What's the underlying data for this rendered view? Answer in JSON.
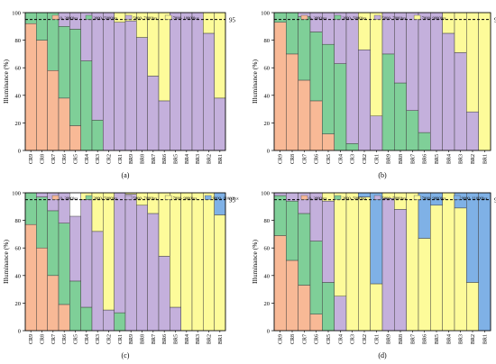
{
  "colors": {
    "c0_3000": "#f8b996",
    "c3000_5000": "#7fcf98",
    "c5000_7000": "#c4b0dc",
    "c7000_9000": "#fdfb9a",
    "c9000_11000": "#7fb1e6",
    "ref_line": "#000000"
  },
  "ylabel": "Illuminance (%)",
  "ref_label": "95",
  "y_ticks": [
    "0",
    "20",
    "40",
    "60",
    "80",
    "100"
  ],
  "chart_data": [
    {
      "type": "bar",
      "stacked": true,
      "panel_label": "(a)",
      "categories": [
        "CR9",
        "CR8",
        "CR7",
        "CR6",
        "CR5",
        "CR4",
        "CR3",
        "CR2",
        "CR1",
        "BR9",
        "BR8",
        "BR7",
        "BR6",
        "BR5",
        "BR4",
        "BR3",
        "BR2",
        "BR1"
      ],
      "legend": [
        "0- 3000lux",
        "3000- 5000lux",
        "5000- 7000lux",
        "7000- 10000lux"
      ],
      "ylim": [
        0,
        100
      ],
      "ref_y": 95,
      "series": [
        {
          "name": "0- 3000lux",
          "color_key": "c0_3000",
          "values": [
            92,
            80,
            58,
            38,
            18,
            0,
            0,
            0,
            0,
            0,
            0,
            0,
            0,
            0,
            0,
            0,
            0,
            0
          ]
        },
        {
          "name": "3000- 5000lux",
          "color_key": "c3000_5000",
          "values": [
            8,
            20,
            42,
            52,
            70,
            65,
            22,
            0,
            0,
            0,
            0,
            0,
            0,
            0,
            0,
            0,
            0,
            0
          ]
        },
        {
          "name": "5000- 7000lux",
          "color_key": "c5000_7000",
          "values": [
            0,
            0,
            0,
            10,
            12,
            35,
            78,
            100,
            93,
            94,
            82,
            54,
            36,
            100,
            100,
            100,
            85,
            38
          ]
        },
        {
          "name": "7000- 10000lux",
          "color_key": "c7000_9000",
          "values": [
            0,
            0,
            0,
            0,
            0,
            0,
            0,
            0,
            7,
            6,
            18,
            46,
            64,
            0,
            0,
            0,
            15,
            62
          ]
        }
      ]
    },
    {
      "type": "bar",
      "stacked": true,
      "panel_label": "(b)",
      "categories": [
        "CR9",
        "CR8",
        "CR7",
        "CR6",
        "CR5",
        "CR4",
        "CR3",
        "CR2",
        "CR1",
        "BR9",
        "BR8",
        "BR7",
        "BR6",
        "BR5",
        "BR4",
        "BR3",
        "BR2",
        "BR1"
      ],
      "legend": [
        "0- 3000lux",
        "3000- 5000lux",
        "5000- 7000lux",
        "7000- 9000lux"
      ],
      "ylim": [
        0,
        100
      ],
      "ref_y": 95,
      "series": [
        {
          "name": "0- 3000lux",
          "color_key": "c0_3000",
          "values": [
            93,
            70,
            51,
            36,
            12,
            0,
            0,
            0,
            0,
            0,
            0,
            0,
            0,
            0,
            0,
            0,
            0,
            0
          ]
        },
        {
          "name": "3000- 5000lux",
          "color_key": "c3000_5000",
          "values": [
            7,
            30,
            46,
            50,
            65,
            63,
            5,
            0,
            0,
            70,
            49,
            29,
            13,
            0,
            0,
            0,
            0,
            0
          ]
        },
        {
          "name": "5000- 7000lux",
          "color_key": "c5000_7000",
          "values": [
            0,
            0,
            3,
            14,
            23,
            37,
            95,
            73,
            25,
            30,
            51,
            71,
            87,
            100,
            85,
            71,
            28,
            0
          ]
        },
        {
          "name": "7000- 9000lux",
          "color_key": "c7000_9000",
          "values": [
            0,
            0,
            0,
            0,
            0,
            0,
            0,
            27,
            75,
            0,
            0,
            0,
            0,
            0,
            15,
            29,
            72,
            100
          ]
        }
      ]
    },
    {
      "type": "bar",
      "stacked": true,
      "panel_label": "(c)",
      "categories": [
        "CR9",
        "CR8",
        "CR7",
        "CR6",
        "CR5",
        "CR4",
        "CR3",
        "CR2",
        "CR1",
        "BR9",
        "BR8",
        "BR7",
        "BR6",
        "BR5",
        "BR4",
        "BR3",
        "BR2",
        "BR1"
      ],
      "legend": [
        "0- 3000lux",
        "3000- 5000lux",
        "5000- 7000lux",
        "7000- 9000lux",
        "9000- 11000lux"
      ],
      "ylim": [
        0,
        100
      ],
      "ref_y": 95,
      "series": [
        {
          "name": "0- 3000lux",
          "color_key": "c0_3000",
          "values": [
            77,
            60,
            40,
            19,
            0,
            0,
            0,
            0,
            0,
            0,
            0,
            0,
            0,
            0,
            0,
            0,
            0,
            0
          ]
        },
        {
          "name": "3000- 5000lux",
          "color_key": "c3000_5000",
          "values": [
            23,
            37,
            47,
            59,
            36,
            17,
            0,
            0,
            13,
            0,
            0,
            0,
            0,
            0,
            0,
            0,
            0,
            0
          ]
        },
        {
          "name": "5000- 7000lux",
          "color_key": "c5000_7000",
          "values": [
            0,
            3,
            13,
            22,
            47,
            78,
            72,
            15,
            87,
            99,
            91,
            85,
            54,
            17,
            0,
            0,
            0,
            0
          ]
        },
        {
          "name": "7000- 9000lux",
          "color_key": "c7000_9000",
          "values": [
            0,
            0,
            0,
            0,
            0,
            5,
            28,
            85,
            0,
            1,
            9,
            15,
            46,
            83,
            100,
            100,
            100,
            84
          ]
        },
        {
          "name": "9000- 11000lux",
          "color_key": "c9000_11000",
          "values": [
            0,
            0,
            0,
            0,
            0,
            0,
            0,
            0,
            0,
            0,
            0,
            0,
            0,
            0,
            0,
            0,
            0,
            16
          ]
        }
      ]
    },
    {
      "type": "bar",
      "stacked": true,
      "panel_label": "(d)",
      "categories": [
        "CR9",
        "CR8",
        "CR7",
        "CR6",
        "CR5",
        "CR4",
        "CR3",
        "CR2",
        "CR1",
        "BR9",
        "BR8",
        "BR7",
        "BR6",
        "BR5",
        "BR4",
        "BR3",
        "BR2",
        "BR1"
      ],
      "legend": [
        "0- 3000lux",
        "3000- 5000lux",
        "5000- 7000lux",
        "7000- 9000lux",
        "9000- 11000lux"
      ],
      "ylim": [
        0,
        100
      ],
      "ref_y": 95,
      "series": [
        {
          "name": "0- 3000lux",
          "color_key": "c0_3000",
          "values": [
            69,
            51,
            33,
            12,
            0,
            0,
            0,
            0,
            0,
            0,
            0,
            0,
            0,
            0,
            0,
            0,
            0,
            0
          ]
        },
        {
          "name": "3000- 5000lux",
          "color_key": "c3000_5000",
          "values": [
            29,
            43,
            52,
            53,
            35,
            0,
            0,
            0,
            0,
            0,
            0,
            0,
            0,
            0,
            0,
            0,
            0,
            0
          ]
        },
        {
          "name": "5000- 7000lux",
          "color_key": "c5000_7000",
          "values": [
            2,
            6,
            15,
            35,
            59,
            25,
            0,
            0,
            0,
            96,
            88,
            0,
            0,
            0,
            0,
            0,
            0,
            0
          ]
        },
        {
          "name": "7000- 9000lux",
          "color_key": "c7000_9000",
          "values": [
            0,
            0,
            0,
            0,
            6,
            75,
            100,
            97,
            34,
            4,
            12,
            100,
            67,
            91,
            100,
            89,
            35,
            0
          ]
        },
        {
          "name": "9000- 11000lux",
          "color_key": "c9000_11000",
          "values": [
            0,
            0,
            0,
            0,
            0,
            0,
            0,
            3,
            66,
            0,
            0,
            0,
            33,
            9,
            0,
            11,
            65,
            100
          ]
        }
      ]
    }
  ]
}
